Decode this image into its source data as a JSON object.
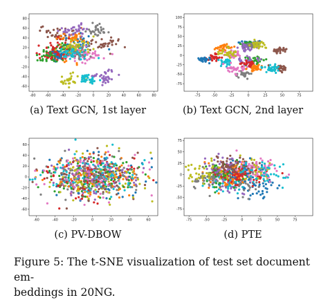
{
  "caption": {
    "line1": "Figure 5: The t-SNE visualization of test set document em-",
    "line2": "beddings in 20NG."
  },
  "chart_data": [
    {
      "type": "scatter",
      "label": "(a) Text GCN, 1st layer",
      "xlim": [
        -85,
        85
      ],
      "ylim": [
        -70,
        90
      ],
      "xticks": [
        -80,
        -60,
        -40,
        -20,
        0,
        20,
        40,
        60,
        80
      ],
      "yticks": [
        -60,
        -40,
        -20,
        0,
        20,
        40,
        60,
        80
      ],
      "grid": false,
      "series_count": 20,
      "layout": "clusters",
      "seed": 11
    },
    {
      "type": "scatter",
      "label": "(b) Text GCN, 2nd layer",
      "xlim": [
        -95,
        95
      ],
      "ylim": [
        -95,
        110
      ],
      "xticks": [
        -75,
        -50,
        -25,
        0,
        25,
        50,
        75
      ],
      "yticks": [
        -75,
        -50,
        -25,
        0,
        25,
        50,
        75,
        100
      ],
      "grid": false,
      "series_count": 20,
      "layout": "separated",
      "seed": 23
    },
    {
      "type": "scatter",
      "label": "(c) PV-DBOW",
      "xlim": [
        -68,
        70
      ],
      "ylim": [
        -72,
        72
      ],
      "xticks": [
        -60,
        -40,
        -20,
        0,
        20,
        40,
        60
      ],
      "yticks": [
        -60,
        -40,
        -20,
        0,
        20,
        40,
        60
      ],
      "grid": false,
      "series_count": 20,
      "layout": "mixed",
      "seed": 37
    },
    {
      "type": "scatter",
      "label": "(d) PTE",
      "xlim": [
        -82,
        100
      ],
      "ylim": [
        -90,
        80
      ],
      "xticks": [
        -75,
        -50,
        -25,
        0,
        25,
        50,
        75
      ],
      "yticks": [
        -75,
        -50,
        -25,
        0,
        25,
        50,
        75
      ],
      "grid": false,
      "series_count": 20,
      "layout": "blob",
      "seed": 53
    }
  ],
  "colors": [
    "#1f77b4",
    "#ff7f0e",
    "#2ca02c",
    "#d62728",
    "#9467bd",
    "#8c564b",
    "#e377c2",
    "#7f7f7f",
    "#bcbd22",
    "#17becf",
    "#1f77b4",
    "#ff7f0e",
    "#2ca02c",
    "#d62728",
    "#9467bd",
    "#8c564b",
    "#e377c2",
    "#7f7f7f",
    "#bcbd22",
    "#17becf"
  ]
}
